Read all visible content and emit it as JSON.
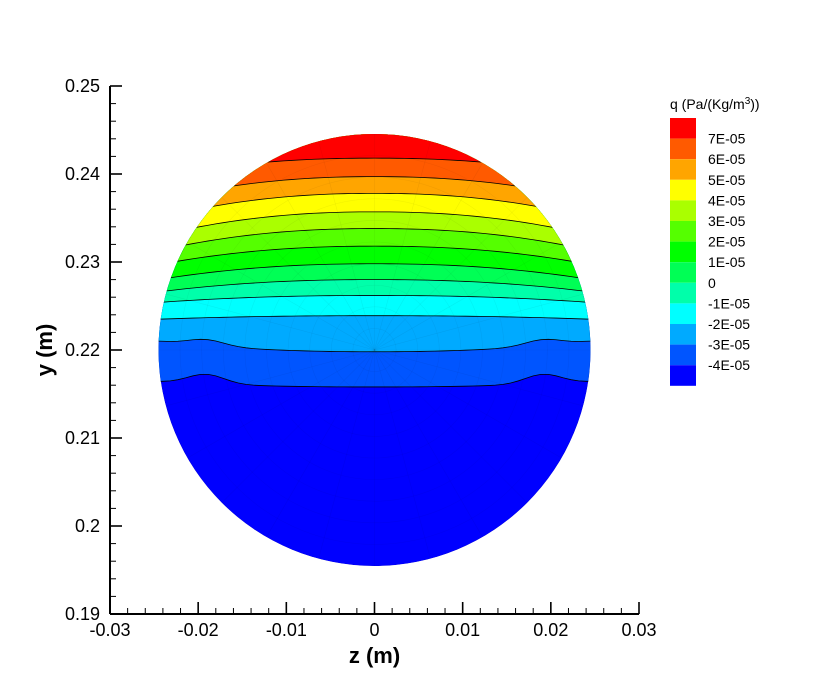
{
  "chart_data": {
    "type": "contour",
    "xlabel": "z  (m)",
    "ylabel": "y  (m)",
    "xlim": [
      -0.03,
      0.03
    ],
    "ylim": [
      0.19,
      0.25
    ],
    "xticks": [
      -0.03,
      -0.02,
      -0.01,
      0,
      0.01,
      0.02,
      0.03
    ],
    "xtick_labels": [
      "-0.03",
      "-0.02",
      "-0.01",
      "0",
      "0.01",
      "0.02",
      "0.03"
    ],
    "yticks": [
      0.19,
      0.2,
      0.21,
      0.22,
      0.23,
      0.24,
      0.25
    ],
    "ytick_labels": [
      "0.19",
      "0.2",
      "0.21",
      "0.22",
      "0.23",
      "0.24",
      "0.25"
    ],
    "domain_circle": {
      "center_z": 0,
      "center_y": 0.22,
      "radius": 0.0245
    },
    "legend": {
      "title_base": "q  (Pa/(Kg/m",
      "title_sup": "3",
      "title_end": "))",
      "position": "right",
      "levels": [
        {
          "label": "7E-05",
          "value": 7e-05,
          "color": "#ff0000"
        },
        {
          "label": "6E-05",
          "value": 6e-05,
          "color": "#ff5a00"
        },
        {
          "label": "5E-05",
          "value": 5e-05,
          "color": "#ffa500"
        },
        {
          "label": "4E-05",
          "value": 4e-05,
          "color": "#ffff00"
        },
        {
          "label": "3E-05",
          "value": 3e-05,
          "color": "#aaff00"
        },
        {
          "label": "2E-05",
          "value": 2e-05,
          "color": "#55ff00"
        },
        {
          "label": "1E-05",
          "value": 1e-05,
          "color": "#00ff00"
        },
        {
          "label": "0",
          "value": 0,
          "color": "#00ff55"
        },
        {
          "label": "-1E-05",
          "value": -1e-05,
          "color": "#00ffaa"
        },
        {
          "label": "-2E-05",
          "value": -2e-05,
          "color": "#00ffff"
        },
        {
          "label": "-3E-05",
          "value": -3e-05,
          "color": "#00aaff"
        },
        {
          "label": "-4E-05",
          "value": -4e-05,
          "color": "#0055ff"
        },
        {
          "label": "",
          "value": -5e-05,
          "color": "#0000ff"
        }
      ]
    },
    "contours": [
      {
        "value": 7e-05,
        "y_center": 0.2418,
        "y_edge": 0.2397,
        "wave": 0.0,
        "color": "#ff0000"
      },
      {
        "value": 6e-05,
        "y_center": 0.2397,
        "y_edge": 0.237,
        "wave": 0.0,
        "color": "#ff5a00"
      },
      {
        "value": 5e-05,
        "y_center": 0.2378,
        "y_edge": 0.235,
        "wave": 0.0,
        "color": "#ffa500"
      },
      {
        "value": 4e-05,
        "y_center": 0.2357,
        "y_edge": 0.233,
        "wave": 0.0,
        "color": "#ffff00"
      },
      {
        "value": 3e-05,
        "y_center": 0.2338,
        "y_edge": 0.2313,
        "wave": 0.0,
        "color": "#aaff00"
      },
      {
        "value": 2e-05,
        "y_center": 0.2318,
        "y_edge": 0.2297,
        "wave": 0.0,
        "color": "#55ff00"
      },
      {
        "value": 1e-05,
        "y_center": 0.2298,
        "y_edge": 0.228,
        "wave": 0.0,
        "color": "#00ff00"
      },
      {
        "value": 0,
        "y_center": 0.228,
        "y_edge": 0.2266,
        "wave": 0.0,
        "color": "#00ff55"
      },
      {
        "value": -1e-05,
        "y_center": 0.2262,
        "y_edge": 0.2254,
        "wave": 0.0,
        "color": "#00ffaa"
      },
      {
        "value": -2e-05,
        "y_center": 0.2239,
        "y_edge": 0.2235,
        "wave": 0.0,
        "color": "#00ffff"
      },
      {
        "value": -3e-05,
        "y_center": 0.2198,
        "y_edge": 0.221,
        "wave": 0.0007,
        "color": "#00aaff"
      },
      {
        "value": -4e-05,
        "y_center": 0.2158,
        "y_edge": 0.2164,
        "wave": 0.0011,
        "color": "#0055ff"
      }
    ],
    "base_color": "#0000ff"
  }
}
